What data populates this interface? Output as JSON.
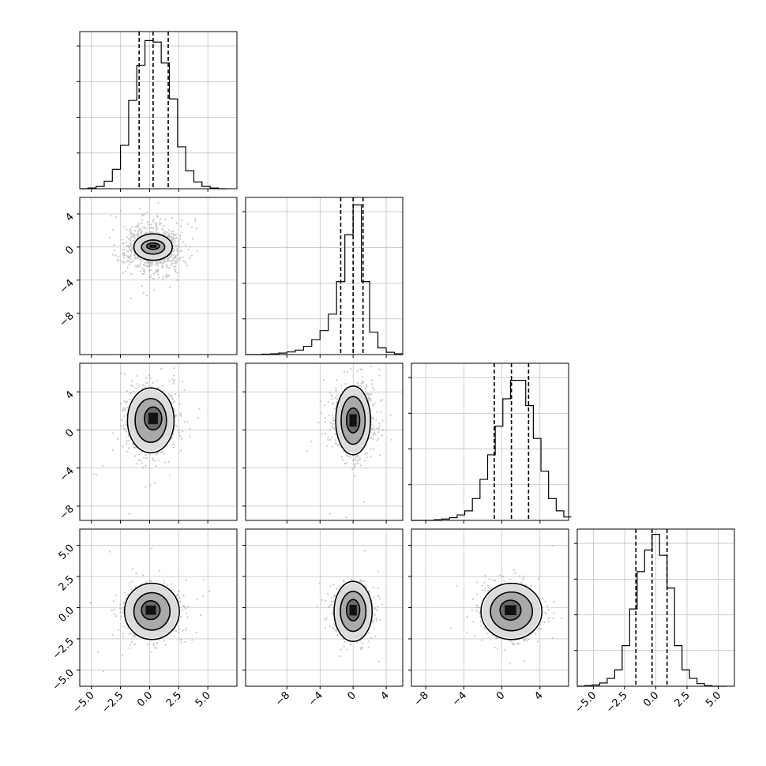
{
  "chart_data": {
    "type": "corner",
    "variables": [
      {
        "xlim": [
          -6,
          7.5
        ],
        "ticks": [
          -5.0,
          -2.5,
          0.0,
          2.5,
          5.0
        ],
        "tick_labels": [
          "−5.0",
          "−2.5",
          "0.0",
          "2.5",
          "5.0"
        ],
        "quantiles": [
          -0.9,
          0.3,
          1.6
        ],
        "hist_edges": [
          -6,
          -5.3,
          -4.6,
          -3.9,
          -3.2,
          -2.5,
          -1.8,
          -1.1,
          -0.4,
          0.3,
          1.0,
          1.7,
          2.4,
          3.1,
          3.8,
          4.5,
          5.2,
          5.9,
          6.6
        ],
        "hist_counts": [
          0,
          1,
          3,
          10,
          26,
          58,
          118,
          165,
          198,
          196,
          168,
          120,
          56,
          24,
          9,
          3,
          1,
          0
        ],
        "hist_ymax": 210
      },
      {
        "xlim": [
          -13,
          6
        ],
        "ticks": [
          -8,
          -4,
          0,
          4
        ],
        "tick_labels": [
          "−8",
          "−4",
          "0",
          "4"
        ],
        "quantiles": [
          -1.5,
          0.0,
          1.2
        ],
        "hist_edges": [
          -13,
          -12,
          -11,
          -10,
          -9,
          -8,
          -7,
          -6,
          -5,
          -4,
          -3,
          -2,
          -1,
          0,
          1,
          2,
          3,
          4,
          5,
          6
        ],
        "hist_counts": [
          0,
          0,
          1,
          2,
          4,
          7,
          12,
          22,
          40,
          64,
          108,
          195,
          320,
          400,
          195,
          60,
          18,
          6,
          2
        ],
        "hist_ymax": 420
      },
      {
        "xlim": [
          -9.5,
          7
        ],
        "ticks": [
          -8,
          -4,
          0,
          4
        ],
        "tick_labels": [
          "−8",
          "−4",
          "0",
          "4"
        ],
        "quantiles": [
          -0.8,
          1.0,
          2.8
        ],
        "hist_edges": [
          -9.5,
          -8.7,
          -7.9,
          -7.1,
          -6.3,
          -5.5,
          -4.7,
          -3.9,
          -3.1,
          -2.3,
          -1.5,
          -0.7,
          0.1,
          0.9,
          1.7,
          2.5,
          3.3,
          4.1,
          4.9,
          5.7,
          6.5,
          7.3
        ],
        "hist_counts": [
          0,
          0,
          0,
          1,
          2,
          4,
          8,
          14,
          32,
          60,
          96,
          138,
          178,
          205,
          205,
          168,
          120,
          72,
          32,
          14,
          5
        ],
        "hist_ymax": 230
      },
      {
        "xlim": [
          -6.3,
          6.3
        ],
        "ticks": [
          -5.0,
          -2.5,
          0.0,
          2.5,
          5.0
        ],
        "tick_labels": [
          "−5.0",
          "−2.5",
          "0.0",
          "2.5",
          "5.0"
        ],
        "quantiles": [
          -1.6,
          -0.3,
          0.9
        ],
        "hist_edges": [
          -6.3,
          -5.7,
          -5.1,
          -4.5,
          -3.9,
          -3.3,
          -2.7,
          -2.1,
          -1.5,
          -0.9,
          -0.3,
          0.3,
          0.9,
          1.5,
          2.1,
          2.7,
          3.3,
          3.9,
          4.5,
          5.1,
          5.7
        ],
        "hist_counts": [
          0,
          1,
          2,
          5,
          12,
          25,
          62,
          118,
          175,
          208,
          232,
          200,
          150,
          62,
          25,
          12,
          4,
          1,
          0,
          0
        ],
        "hist_ymax": 240
      }
    ],
    "pairs": [
      {
        "row": 1,
        "col": 0,
        "mean": [
          0.3,
          0.0
        ],
        "sigma": [
          1.2,
          1.4
        ],
        "rho": 0.0,
        "kernel": [
          0.3,
          0.1
        ],
        "contours": [
          [
            1.65,
            1.6
          ],
          [
            1.0,
            0.85
          ],
          [
            0.55,
            0.38
          ]
        ]
      },
      {
        "row": 2,
        "col": 0,
        "mean": [
          0.1,
          1.0
        ],
        "sigma": [
          1.1,
          1.7
        ],
        "rho": 0.0,
        "kernel": [
          0.3,
          1.2
        ],
        "contours": [
          [
            2.0,
            3.4
          ],
          [
            1.35,
            2.3
          ],
          [
            0.75,
            1.2
          ]
        ]
      },
      {
        "row": 2,
        "col": 1,
        "mean": [
          0.0,
          1.0
        ],
        "sigma": [
          1.2,
          1.7
        ],
        "rho": 0.0,
        "kernel": [
          0.0,
          1.0
        ],
        "contours": [
          [
            2.1,
            3.6
          ],
          [
            1.45,
            2.5
          ],
          [
            0.8,
            1.3
          ]
        ]
      },
      {
        "row": 3,
        "col": 0,
        "mean": [
          0.2,
          -0.3
        ],
        "sigma": [
          1.1,
          1.0
        ],
        "rho": 0.0,
        "kernel": [
          0.1,
          -0.2
        ],
        "contours": [
          [
            2.35,
            2.25
          ],
          [
            1.55,
            1.5
          ],
          [
            0.8,
            0.75
          ]
        ]
      },
      {
        "row": 3,
        "col": 1,
        "mean": [
          0.0,
          -0.3
        ],
        "sigma": [
          1.1,
          1.0
        ],
        "rho": 0.0,
        "kernel": [
          0.0,
          -0.2
        ],
        "contours": [
          [
            2.3,
            2.4
          ],
          [
            1.55,
            1.6
          ],
          [
            0.8,
            0.85
          ]
        ]
      },
      {
        "row": 3,
        "col": 2,
        "mean": [
          1.0,
          -0.3
        ],
        "sigma": [
          1.4,
          1.0
        ],
        "rho": 0.0,
        "kernel": [
          0.9,
          -0.2
        ],
        "contours": [
          [
            3.2,
            2.25
          ],
          [
            2.2,
            1.55
          ],
          [
            1.1,
            0.8
          ]
        ]
      }
    ],
    "grid": true,
    "colors": {
      "points": "#9a9a9a",
      "density_max": "#000000",
      "line": "#000000",
      "grid": "#b0b0b0"
    }
  }
}
